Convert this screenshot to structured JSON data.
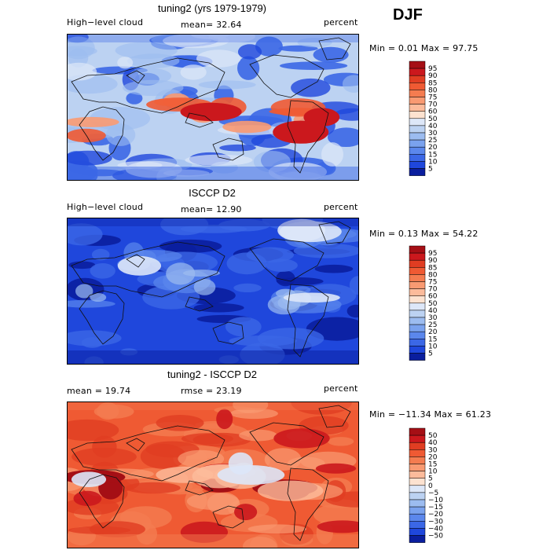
{
  "season": "DJF",
  "panels": [
    {
      "title": "tuning2 (yrs 1979-1979)",
      "left_label": "High−level cloud",
      "center_label": "mean=  32.64",
      "right_label": "percent",
      "minmax": "Min =   0.01 Max =  97.75",
      "theme": "model"
    },
    {
      "title": "ISCCP D2",
      "left_label": "High−level cloud",
      "center_label": "mean=  12.90",
      "right_label": "percent",
      "minmax": "Min =   0.13 Max =  54.22",
      "theme": "obs"
    },
    {
      "title": "tuning2 - ISCCP D2",
      "left_label": "mean =   19.74",
      "center_label": "rmse =   23.19",
      "right_label": "percent",
      "minmax": "Min = −11.34 Max =  61.23",
      "theme": "diff"
    }
  ],
  "chart_data": [
    {
      "type": "heatmap",
      "title": "tuning2 (yrs 1979-1979)",
      "variable": "High-level cloud",
      "units": "percent",
      "mean": 32.64,
      "min": 0.01,
      "max": 97.75,
      "colorbar_levels": [
        "95",
        "90",
        "85",
        "80",
        "75",
        "70",
        "60",
        "50",
        "40",
        "30",
        "25",
        "20",
        "15",
        "10",
        "5"
      ],
      "colorbar_colors": [
        "#a50f15",
        "#cb181d",
        "#e03d22",
        "#ef5a33",
        "#f47c50",
        "#f99a72",
        "#fcbb9b",
        "#fde2d0",
        "#dde7f8",
        "#bcd2f2",
        "#9cbcf0",
        "#7aa2ee",
        "#5b87ec",
        "#3b67e6",
        "#1f47dc",
        "#0a1e9e"
      ]
    },
    {
      "type": "heatmap",
      "title": "ISCCP D2",
      "variable": "High-level cloud",
      "units": "percent",
      "mean": 12.9,
      "min": 0.13,
      "max": 54.22,
      "colorbar_levels": [
        "95",
        "90",
        "85",
        "80",
        "75",
        "70",
        "60",
        "50",
        "40",
        "30",
        "25",
        "20",
        "15",
        "10",
        "5"
      ],
      "colorbar_colors": [
        "#a50f15",
        "#cb181d",
        "#e03d22",
        "#ef5a33",
        "#f47c50",
        "#f99a72",
        "#fcbb9b",
        "#fde2d0",
        "#dde7f8",
        "#bcd2f2",
        "#9cbcf0",
        "#7aa2ee",
        "#5b87ec",
        "#3b67e6",
        "#1f47dc",
        "#0a1e9e"
      ]
    },
    {
      "type": "heatmap",
      "title": "tuning2 - ISCCP D2",
      "units": "percent",
      "mean": 19.74,
      "rmse": 23.19,
      "min": -11.34,
      "max": 61.23,
      "colorbar_levels": [
        "50",
        "40",
        "30",
        "20",
        "15",
        "10",
        "5",
        "0",
        "−5",
        "−10",
        "−15",
        "−20",
        "−30",
        "−40",
        "−50"
      ],
      "colorbar_colors": [
        "#a50f15",
        "#cb181d",
        "#e03d22",
        "#ef5a33",
        "#f47c50",
        "#f99a72",
        "#fcbb9b",
        "#fde2d0",
        "#dde7f8",
        "#bcd2f2",
        "#9cbcf0",
        "#7aa2ee",
        "#5b87ec",
        "#3b67e6",
        "#1f47dc",
        "#0a1e9e"
      ]
    }
  ]
}
